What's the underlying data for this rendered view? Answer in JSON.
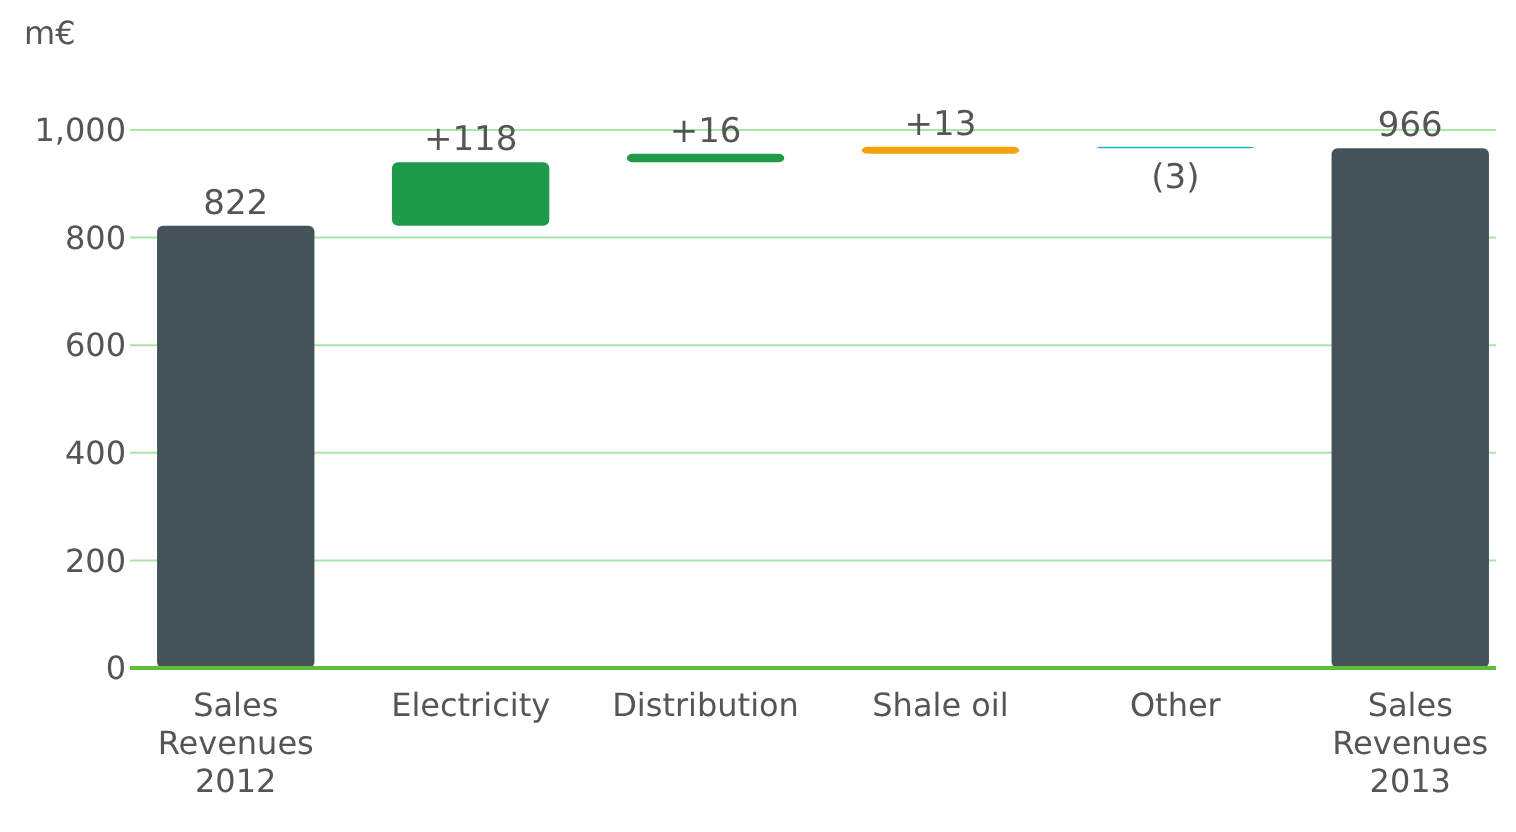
{
  "chart_data": {
    "type": "bar",
    "ylabel": "m€",
    "categories": [
      "Sales Revenues 2012",
      "Electricity",
      "Distribution",
      "Shale oil",
      "Other",
      "Sales Revenues 2013"
    ],
    "values": [
      822,
      118,
      16,
      13,
      -3,
      966
    ],
    "base": [
      0,
      822,
      940,
      956,
      969,
      0
    ],
    "colors": [
      "#44525a",
      "#1e9a4a",
      "#1e9a4a",
      "#f0a30a",
      "#1ab0c8",
      "#44525a"
    ],
    "value_labels": [
      "822",
      "+118",
      "+16",
      "+13",
      "(3)",
      "966"
    ],
    "ylim": [
      0,
      1000
    ],
    "yticks": [
      0,
      200,
      400,
      600,
      800,
      {
        "value": 1000,
        "label": "1,000"
      }
    ],
    "grid": "y"
  }
}
